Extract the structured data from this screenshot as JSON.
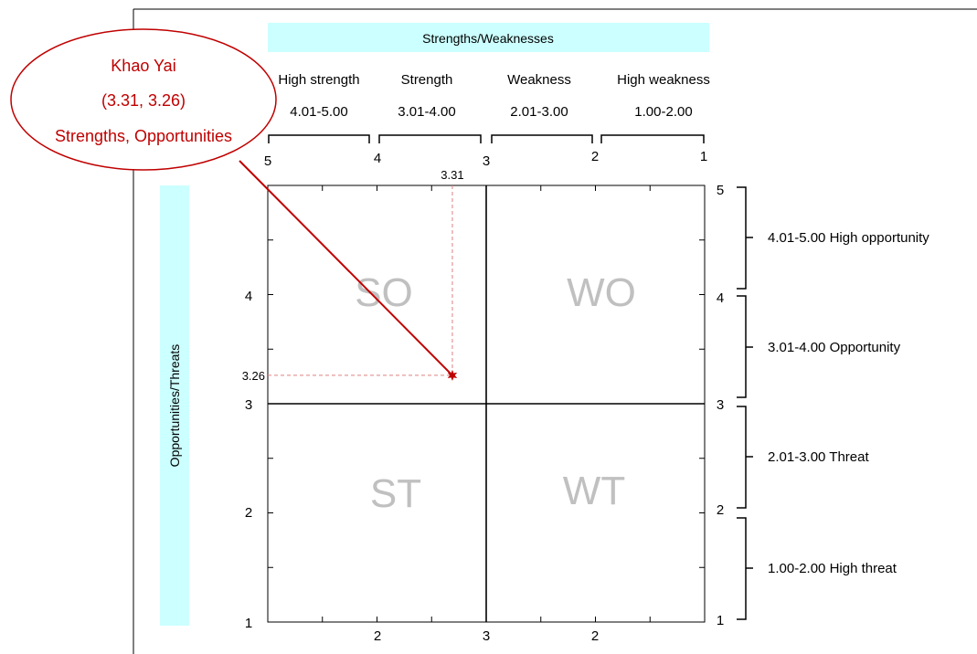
{
  "chart_data": {
    "type": "scatter",
    "title": "",
    "x_axis": {
      "label": "Strengths/Weaknesses",
      "range": [
        5,
        1
      ],
      "reversed": true,
      "bottom_tick_labels": [
        "2",
        "3",
        "2"
      ],
      "top_tick_labels": [
        "5",
        "4",
        "3",
        "2",
        "1"
      ],
      "bands": [
        {
          "name": "High strength",
          "range": "4.01-5.00"
        },
        {
          "name": "Strength",
          "range": "3.01-4.00"
        },
        {
          "name": "Weakness",
          "range": "2.01-3.00"
        },
        {
          "name": "High weakness",
          "range": "1.00-2.00"
        }
      ]
    },
    "y_axis": {
      "label": "Opportunities/Threats",
      "range": [
        1,
        5
      ],
      "left_tick_labels": [
        "1",
        "2",
        "3",
        "4"
      ],
      "right_tick_labels": [
        "1",
        "2",
        "3",
        "4",
        "5"
      ],
      "bands": [
        {
          "range": "4.01-5.00",
          "name": "High opportunity"
        },
        {
          "range": "3.01-4.00",
          "name": "Opportunity"
        },
        {
          "range": "2.01-3.00",
          "name": "Threat"
        },
        {
          "range": "1.00-2.00",
          "name": "High threat"
        }
      ]
    },
    "quadrants": [
      {
        "name": "SO",
        "position": "top-left"
      },
      {
        "name": "WO",
        "position": "top-right"
      },
      {
        "name": "ST",
        "position": "bottom-left"
      },
      {
        "name": "WT",
        "position": "bottom-right"
      }
    ],
    "points": [
      {
        "name": "Khao Yai",
        "x": 3.31,
        "y": 3.26,
        "x_label": "3.31",
        "y_label": "3.26",
        "coords_text": "(3.31, 3.26)",
        "category": "Strengths, Opportunities",
        "color": "#c00000"
      }
    ],
    "grid": false,
    "colors": {
      "band_fill": "#ccffff",
      "callout": "#c00000",
      "guide": "#e08080",
      "quadrant_text": "#c0c0c0"
    }
  }
}
